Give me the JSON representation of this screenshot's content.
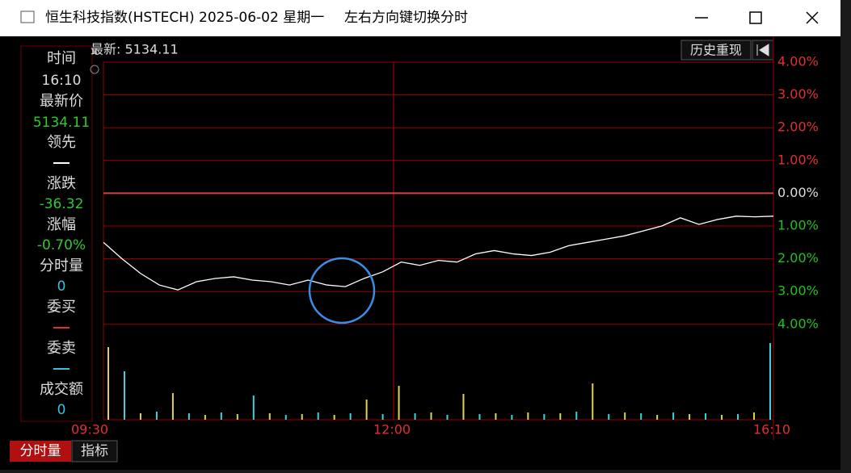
{
  "window": {
    "title": "恒生科技指数(HSTECH) 2025-06-02 星期一",
    "hint": "左右方向键切换分时"
  },
  "info_panel": {
    "time_label": "时间",
    "time": "16:10",
    "last_label": "最新价",
    "last": "5134.11",
    "lead_label": "领先",
    "change_label": "涨跌",
    "change": "-36.32",
    "pct_label": "涨幅",
    "pct": "-0.70%",
    "volume_label": "分时量",
    "volume": "0",
    "bid_label": "委买",
    "ask_label": "委卖",
    "amount_label": "成交额",
    "amount": "0"
  },
  "chart": {
    "last_text": "最新: 5134.11",
    "replay_button": "历史重现",
    "pct_labels": [
      "4.00%",
      "3.00%",
      "2.00%",
      "1.00%",
      "0.00%",
      "1.00%",
      "2.00%",
      "3.00%",
      "4.00%"
    ],
    "time_labels": [
      "09:30",
      "12:00",
      "16:10"
    ],
    "price_pct": [
      -1.5,
      -2.0,
      -2.45,
      -2.8,
      -2.95,
      -2.7,
      -2.6,
      -2.55,
      -2.65,
      -2.7,
      -2.8,
      -2.65,
      -2.8,
      -2.85,
      -2.6,
      -2.4,
      -2.1,
      -2.2,
      -2.05,
      -2.1,
      -1.85,
      -1.75,
      -1.85,
      -1.9,
      -1.8,
      -1.6,
      -1.5,
      -1.4,
      -1.3,
      -1.15,
      -1.0,
      -0.75,
      -0.95,
      -0.8,
      -0.7,
      -0.72,
      -0.7
    ],
    "volume": [
      90,
      60,
      8,
      10,
      33,
      8,
      6,
      9,
      7,
      30,
      8,
      6,
      7,
      9,
      6,
      8,
      25,
      7,
      42,
      8,
      9,
      6,
      32,
      7,
      8,
      6,
      9,
      7,
      8,
      10,
      45,
      7,
      9,
      8,
      6,
      9,
      7,
      8,
      6,
      7,
      9,
      95
    ]
  },
  "tabs": [
    "分时量",
    "指标"
  ]
}
